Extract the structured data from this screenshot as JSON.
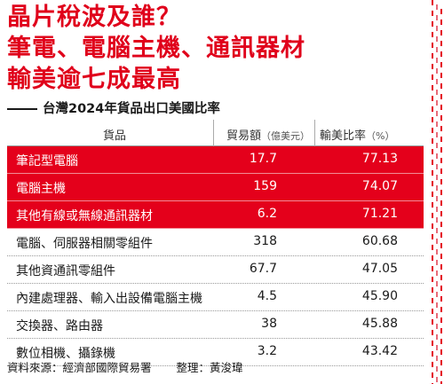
{
  "headline": [
    "晶片稅波及誰？",
    "筆電、電腦主機、通訊器材",
    "輸美逾七成最高"
  ],
  "subtitle": "台灣2024年貨品出口美國比率",
  "columns": {
    "goods": "貨品",
    "trade": "貿易額",
    "trade_unit": "（億美元）",
    "ratio": "輸美比率",
    "ratio_unit": "（%）"
  },
  "source": "資料來源：經濟部國際貿易署",
  "compiler": "整理：黃浚瑋",
  "colors": {
    "accent": "#e4001b",
    "text": "#1a1a1a"
  },
  "chart_data": {
    "type": "table",
    "title": "晶片稅波及誰？筆電、電腦主機、通訊器材 輸美逾七成最高",
    "subtitle": "台灣2024年貨品出口美國比率",
    "columns": [
      "貨品",
      "貿易額（億美元）",
      "輸美比率（%）"
    ],
    "rows": [
      {
        "name": "筆記型電腦",
        "trade": "17.7",
        "ratio": "77.13",
        "highlight": true
      },
      {
        "name": "電腦主機",
        "trade": "159",
        "ratio": "74.07",
        "highlight": true
      },
      {
        "name": "其他有線或無線通訊器材",
        "trade": "6.2",
        "ratio": "71.21",
        "highlight": true
      },
      {
        "name": "電腦、伺服器相關零組件",
        "trade": "318",
        "ratio": "60.68",
        "highlight": false
      },
      {
        "name": "其他資通訊零組件",
        "trade": "67.7",
        "ratio": "47.05",
        "highlight": false
      },
      {
        "name": "內建處理器、輸入出設備電腦主機",
        "trade": "4.5",
        "ratio": "45.90",
        "highlight": false
      },
      {
        "name": "交換器、路由器",
        "trade": "38",
        "ratio": "45.88",
        "highlight": false
      },
      {
        "name": "數位相機、攝錄機",
        "trade": "3.2",
        "ratio": "43.42",
        "highlight": false
      }
    ]
  }
}
